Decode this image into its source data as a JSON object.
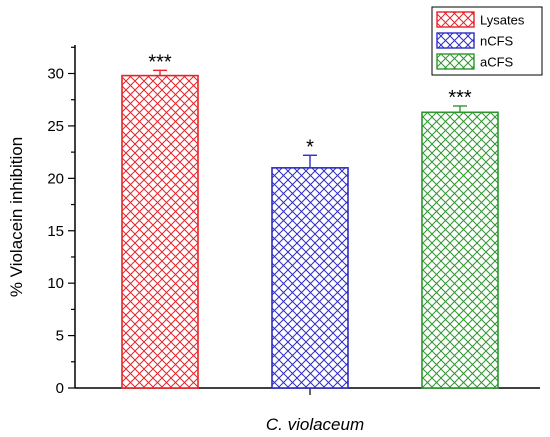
{
  "chart_data": {
    "type": "bar",
    "categories": [
      "Lysates",
      "nCFS",
      "aCFS"
    ],
    "values": [
      29.8,
      21.0,
      26.3
    ],
    "errors": [
      0.5,
      1.2,
      0.6
    ],
    "significance": [
      "***",
      "*",
      "***"
    ],
    "colors": [
      "#e8232a",
      "#2e2ec4",
      "#2f962f"
    ],
    "xlabel": "C. violaceum",
    "ylabel": "% Violacein inhibition",
    "ylim": [
      0,
      35
    ],
    "yticks": [
      0,
      5,
      10,
      15,
      20,
      25,
      30
    ],
    "grid": false,
    "legend": {
      "position": "top-right",
      "entries": [
        "Lysates",
        "nCFS",
        "aCFS"
      ]
    }
  }
}
